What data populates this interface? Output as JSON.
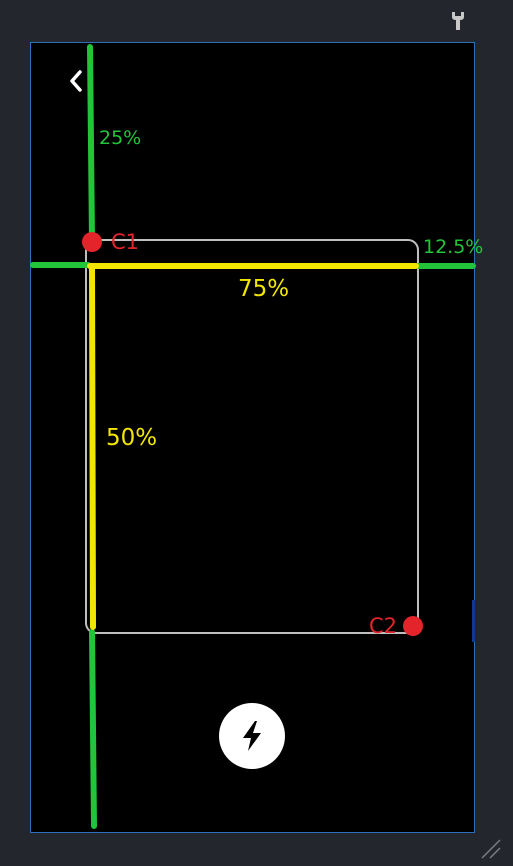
{
  "overlay": {
    "top_margin_label": "25%",
    "right_margin_label": "12.5%",
    "width_label": "75%",
    "height_label": "50%",
    "corner1_label": "C1",
    "corner2_label": "C2"
  },
  "icons": {
    "tool": "wrench-icon",
    "back": "chevron-left-icon",
    "flash": "lightning-bolt-icon",
    "resize": "resize-grip-icon"
  },
  "colors": {
    "background": "#23262d",
    "frame_border": "#2e6fbd",
    "guide_green": "#22c53a",
    "measure_yellow": "#f2e600",
    "corner_red": "#e3242b",
    "crop_outline": "#bfbfbf"
  }
}
